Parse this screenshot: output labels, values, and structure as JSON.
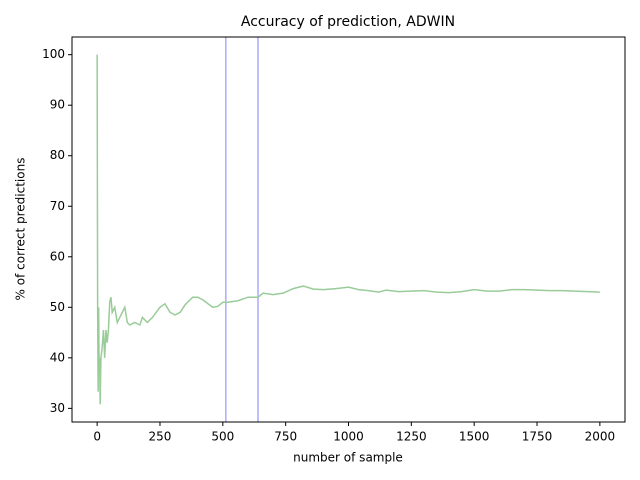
{
  "chart_data": {
    "type": "line",
    "title": "Accuracy of prediction, ADWIN",
    "x_label": "number of sample",
    "y_label": "% of correct predictions",
    "x": [
      0,
      2,
      4,
      6,
      8,
      10,
      12,
      15,
      20,
      25,
      30,
      35,
      40,
      45,
      50,
      55,
      60,
      70,
      80,
      90,
      100,
      110,
      120,
      130,
      150,
      170,
      180,
      200,
      220,
      250,
      270,
      290,
      310,
      330,
      350,
      380,
      400,
      420,
      460,
      480,
      500,
      520,
      560,
      600,
      640,
      660,
      700,
      740,
      780,
      820,
      860,
      900,
      950,
      1000,
      1040,
      1080,
      1120,
      1150,
      1200,
      1250,
      1300,
      1350,
      1400,
      1450,
      1500,
      1550,
      1600,
      1650,
      1700,
      1750,
      1800,
      1850,
      1900,
      1950,
      2000
    ],
    "series": [
      {
        "name": "accuracy",
        "color": "#99cc99",
        "values": [
          100,
          50,
          33.3,
          50,
          37.5,
          40,
          30.8,
          40,
          42,
          45.5,
          40,
          45.5,
          43,
          45.5,
          51,
          52,
          49,
          50,
          47,
          48,
          49,
          50,
          47,
          46.5,
          47,
          46.5,
          48,
          47,
          48,
          50,
          50.7,
          49,
          48.5,
          49,
          50.5,
          52,
          52,
          51.5,
          50,
          50.2,
          51,
          51,
          51.3,
          52,
          52,
          52.8,
          52.5,
          52.8,
          53.7,
          54.2,
          53.6,
          53.5,
          53.7,
          54,
          53.5,
          53.3,
          53,
          53.4,
          53.1,
          53.2,
          53.3,
          53,
          52.9,
          53.1,
          53.5,
          53.2,
          53.2,
          53.5,
          53.5,
          53.4,
          53.3,
          53.3,
          53.2,
          53.1,
          53
        ]
      }
    ],
    "vlines": [
      512,
      640
    ],
    "vline_color": "#aaaaff",
    "xlim": [
      -100,
      2100
    ],
    "ylim": [
      27.3,
      103.5
    ],
    "xticks": [
      0,
      250,
      500,
      750,
      1000,
      1250,
      1500,
      1750,
      2000
    ],
    "yticks": [
      30,
      40,
      50,
      60,
      70,
      80,
      90,
      100
    ]
  }
}
